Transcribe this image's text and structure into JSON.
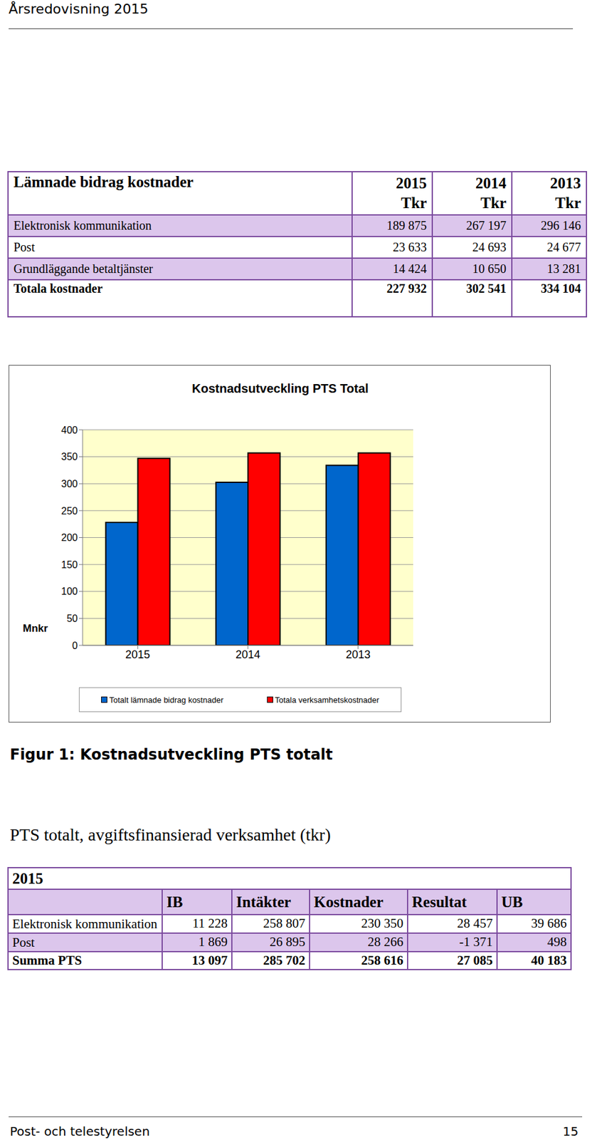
{
  "header": {
    "title": "Årsredovisning 2015"
  },
  "table1": {
    "title": "Lämnade bidrag kostnader",
    "columns": [
      {
        "year": "2015",
        "unit": "Tkr"
      },
      {
        "year": "2014",
        "unit": "Tkr"
      },
      {
        "year": "2013",
        "unit": "Tkr"
      }
    ],
    "rows": [
      {
        "label": "Elektronisk kommunikation",
        "values": [
          "189 875",
          "267 197",
          "296 146"
        ]
      },
      {
        "label": "Post",
        "values": [
          "23 633",
          "24 693",
          "24 677"
        ]
      },
      {
        "label": "Grundläggande betaltjänster",
        "values": [
          "14 424",
          "10 650",
          "13 281"
        ]
      }
    ],
    "total": {
      "label": "Totala kostnader",
      "values": [
        "227 932",
        "302 541",
        "334 104"
      ]
    }
  },
  "chart_data": {
    "type": "bar",
    "title": "Kostnadsutveckling PTS Total",
    "y_label": "Mnkr",
    "categories": [
      "2015",
      "2014",
      "2013"
    ],
    "series": [
      {
        "name": "Totalt lämnade bidrag kostnader",
        "color": "#0066cc",
        "values": [
          228,
          302.5,
          334.1
        ]
      },
      {
        "name": "Totala verksamhetskostnader",
        "color": "#ff0000",
        "values": [
          347,
          357,
          357
        ]
      }
    ],
    "ylim": [
      0,
      400
    ],
    "yticks": [
      0,
      50,
      100,
      150,
      200,
      250,
      300,
      350,
      400
    ],
    "grid": true,
    "legend": "bottom"
  },
  "caption": "Figur 1: Kostnadsutveckling PTS totalt",
  "table2": {
    "title": "PTS totalt, avgiftsfinansierad verksamhet (tkr)",
    "year": "2015",
    "columns": [
      "IB",
      "Intäkter",
      "Kostnader",
      "Resultat",
      "UB"
    ],
    "rows": [
      {
        "label": "Elektronisk kommunikation",
        "values": [
          "11 228",
          "258 807",
          "230 350",
          "28 457",
          "39 686"
        ]
      },
      {
        "label": "Post",
        "values": [
          "1 869",
          "26 895",
          "28 266",
          "-1 371",
          "498"
        ]
      }
    ],
    "total": {
      "label": "Summa PTS",
      "values": [
        "13 097",
        "285 702",
        "258 616",
        "27 085",
        "40 183"
      ]
    }
  },
  "footer": {
    "left": "Post- och telestyrelsen",
    "right": "15"
  }
}
